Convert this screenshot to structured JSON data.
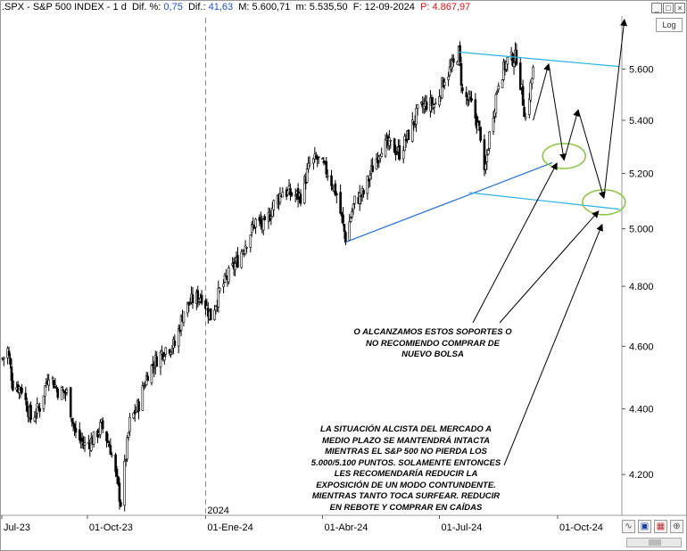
{
  "header": {
    "symbol": ".SPX - S&P 500 INDEX - ",
    "period": "1 d",
    "dif_pct_label": "Dif. %:",
    "dif_pct_value": "0,75",
    "dif_label": "Dif.:",
    "dif_value": "41,63",
    "max_label": "M:",
    "max_value": "5.600,71",
    "min_label": "m:",
    "min_value": "5.535,50",
    "date_label": "F:",
    "date_value": "12-09-2024",
    "p_label": "P:",
    "p_value": "4.867,97"
  },
  "controls": {
    "log_label": "Log",
    "minimize_icon": "minimize-icon",
    "restore_icon": "restore-icon",
    "close_icon": "close-icon"
  },
  "colors": {
    "candles": "#000000",
    "trendline_up": "#1e6fe0",
    "channel_lines": "#27b2e8",
    "ellipses": "#8cc63f",
    "arrows": "#000000",
    "price_axis_bg": "#ffffff"
  },
  "annotations": {
    "supports_note": "O ALCANZAMOS ESTOS SOPORTES O\nNO RECOMIENDO COMPRAR DE\nNUEVO BOLSA",
    "situation_note": "LA SITUACIÓN ALCISTA DEL MERCADO A\nMEDIO PLAZO SE MANTENDRÁ INTACTA\nMIENTRAS EL S&P 500 NO PIERDA LOS\n5.000/5.100 PUNTOS. SOLAMENTE ENTONCES\nLES RECOMENDARÍA REDUCIR LA\nEXPOSICIÓN DE UN MODO CONTUNDENTE.\nMIENTRAS TANTO TOCA SURFEAR. REDUCIR\nEN REBOTE Y COMPRAR EN CAÍDAS"
  },
  "chart_data": {
    "type": "candlestick",
    "series_name": ".SPX - S&P 500 INDEX",
    "price_scale": "log",
    "ylim": [
      4080,
      5800
    ],
    "y_ticks": [
      "5.600",
      "5.400",
      "5.200",
      "5.000",
      "4.800",
      "4.600",
      "4.400",
      "4.200"
    ],
    "y_tick_values": [
      5600,
      5400,
      5200,
      5000,
      4800,
      4600,
      4400,
      4200
    ],
    "x_labels": [
      "Jul-23",
      "01-Oct-23",
      "01-Ene-24",
      "01-Abr-24",
      "01-Jul-24",
      "01-Oct-24"
    ],
    "year_marker": "2024",
    "x_range": [
      "2023-07-25",
      "2024-11-20"
    ],
    "path": [
      [
        "2023-07-27",
        4560
      ],
      [
        "2023-07-31",
        4588
      ],
      [
        "2023-08-04",
        4478
      ],
      [
        "2023-08-11",
        4464
      ],
      [
        "2023-08-18",
        4370
      ],
      [
        "2023-08-25",
        4406
      ],
      [
        "2023-09-01",
        4515
      ],
      [
        "2023-09-08",
        4457
      ],
      [
        "2023-09-15",
        4450
      ],
      [
        "2023-09-22",
        4320
      ],
      [
        "2023-09-29",
        4288
      ],
      [
        "2023-10-06",
        4308
      ],
      [
        "2023-10-12",
        4349
      ],
      [
        "2023-10-19",
        4278
      ],
      [
        "2023-10-27",
        4117
      ],
      [
        "2023-11-03",
        4358
      ],
      [
        "2023-11-10",
        4415
      ],
      [
        "2023-11-17",
        4514
      ],
      [
        "2023-11-24",
        4559
      ],
      [
        "2023-12-01",
        4594
      ],
      [
        "2023-12-08",
        4604
      ],
      [
        "2023-12-15",
        4719
      ],
      [
        "2023-12-22",
        4754
      ],
      [
        "2023-12-29",
        4769
      ],
      [
        "2024-01-05",
        4697
      ],
      [
        "2024-01-12",
        4783
      ],
      [
        "2024-01-19",
        4839
      ],
      [
        "2024-01-26",
        4890
      ],
      [
        "2024-02-02",
        4958
      ],
      [
        "2024-02-09",
        5026
      ],
      [
        "2024-02-16",
        5005
      ],
      [
        "2024-02-23",
        5088
      ],
      [
        "2024-03-01",
        5137
      ],
      [
        "2024-03-08",
        5123
      ],
      [
        "2024-03-15",
        5117
      ],
      [
        "2024-03-22",
        5234
      ],
      [
        "2024-03-28",
        5254
      ],
      [
        "2024-04-05",
        5204
      ],
      [
        "2024-04-12",
        5123
      ],
      [
        "2024-04-19",
        4967
      ],
      [
        "2024-04-26",
        5099
      ],
      [
        "2024-05-03",
        5127
      ],
      [
        "2024-05-10",
        5222
      ],
      [
        "2024-05-17",
        5303
      ],
      [
        "2024-05-24",
        5304
      ],
      [
        "2024-05-31",
        5277
      ],
      [
        "2024-06-07",
        5346
      ],
      [
        "2024-06-14",
        5431
      ],
      [
        "2024-06-21",
        5464
      ],
      [
        "2024-06-28",
        5460
      ],
      [
        "2024-07-05",
        5567
      ],
      [
        "2024-07-12",
        5615
      ],
      [
        "2024-07-16",
        5667
      ],
      [
        "2024-07-19",
        5505
      ],
      [
        "2024-07-26",
        5459
      ],
      [
        "2024-08-02",
        5346
      ],
      [
        "2024-08-05",
        5186
      ],
      [
        "2024-08-09",
        5344
      ],
      [
        "2024-08-16",
        5554
      ],
      [
        "2024-08-23",
        5634
      ],
      [
        "2024-08-30",
        5648
      ],
      [
        "2024-09-06",
        5408
      ],
      [
        "2024-09-12",
        5595
      ]
    ],
    "lines": [
      {
        "kind": "uptrend",
        "from": [
          "2024-04-19",
          4953
        ],
        "to": [
          "2024-09-27",
          5240
        ]
      },
      {
        "kind": "channel-top",
        "from": [
          "2024-07-16",
          5668
        ],
        "to": [
          "2024-11-18",
          5610
        ]
      },
      {
        "kind": "channel-bottom",
        "from": [
          "2024-07-24",
          5130
        ],
        "to": [
          "2024-11-18",
          5070
        ]
      }
    ],
    "projection": [
      [
        "2024-09-12",
        5400
      ],
      [
        "2024-09-24",
        5620
      ],
      [
        "2024-10-06",
        5250
      ],
      [
        "2024-10-17",
        5440
      ],
      [
        "2024-11-06",
        5110
      ],
      [
        "2024-11-22",
        5800
      ]
    ],
    "ellipses": [
      {
        "center": [
          "2024-10-06",
          5265
        ]
      },
      {
        "center": [
          "2024-11-06",
          5095
        ]
      }
    ]
  }
}
